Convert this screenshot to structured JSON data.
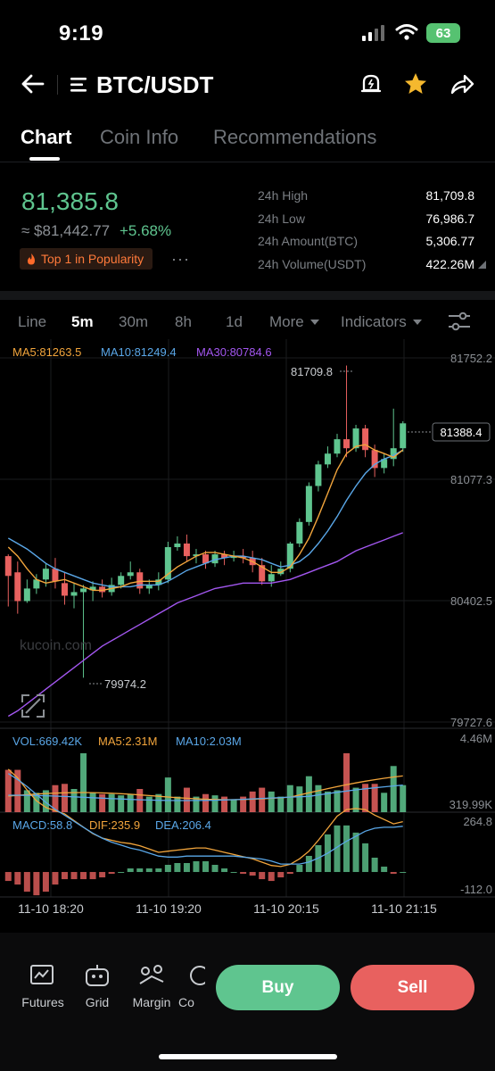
{
  "status": {
    "time": "9:19",
    "battery": "63"
  },
  "header": {
    "title": "BTC/USDT"
  },
  "tabs": [
    {
      "label": "Chart"
    },
    {
      "label": "Coin Info"
    },
    {
      "label": "Recommendations"
    }
  ],
  "ticker": {
    "last_price": "81,385.8",
    "fiat_price": "≈ $81,442.77",
    "change": "+5.68%",
    "badge": "Top 1 in Popularity",
    "more": "···",
    "stats": [
      {
        "label": "24h High",
        "value": "81,709.8"
      },
      {
        "label": "24h Low",
        "value": "76,986.7"
      },
      {
        "label": "24h Amount(BTC)",
        "value": "5,306.77"
      },
      {
        "label": "24h Volume(USDT)",
        "value": "422.26M"
      }
    ]
  },
  "timeframes": [
    {
      "label": "Line"
    },
    {
      "label": "5m"
    },
    {
      "label": "30m"
    },
    {
      "label": "8h"
    },
    {
      "label": "1d"
    }
  ],
  "toolbar": {
    "more_label": "More",
    "indicators_label": "Indicators"
  },
  "chart_data": {
    "type": "candlestick",
    "price_ticks": [
      "81752.2",
      "81077.3",
      "80402.5",
      "79727.6"
    ],
    "price_range": [
      79727.6,
      81752.2
    ],
    "ma_legend": {
      "ma5": "MA5:81263.5",
      "ma10": "MA10:81249.4",
      "ma30": "MA30:80784.6"
    },
    "last_price_label": "81388.4",
    "high_marker": "81709.8",
    "low_marker": "79974.2",
    "watermark": "kucoin.com",
    "x_ticks": [
      "11-10 18:20",
      "11-10 19:20",
      "11-10 20:15",
      "11-10 21:15"
    ],
    "candles": [
      [
        80650,
        80540,
        80660,
        80370
      ],
      [
        80560,
        80400,
        80620,
        80330
      ],
      [
        80400,
        80470,
        80520,
        80390
      ],
      [
        80470,
        80520,
        80550,
        80440
      ],
      [
        80520,
        80580,
        80610,
        80480
      ],
      [
        80580,
        80510,
        80640,
        80470
      ],
      [
        80500,
        80430,
        80560,
        80380
      ],
      [
        80430,
        80450,
        80500,
        80360
      ],
      [
        80450,
        80470,
        80490,
        79974
      ],
      [
        80460,
        80480,
        80510,
        80400
      ],
      [
        80480,
        80450,
        80520,
        80420
      ],
      [
        80450,
        80490,
        80530,
        80430
      ],
      [
        80490,
        80540,
        80560,
        80470
      ],
      [
        80540,
        80560,
        80620,
        80520
      ],
      [
        80560,
        80470,
        80580,
        80440
      ],
      [
        80470,
        80490,
        80520,
        80440
      ],
      [
        80490,
        80520,
        80560,
        80460
      ],
      [
        80520,
        80700,
        80730,
        80500
      ],
      [
        80700,
        80720,
        80760,
        80680
      ],
      [
        80720,
        80650,
        80770,
        80620
      ],
      [
        80650,
        80660,
        80690,
        80610
      ],
      [
        80660,
        80610,
        80680,
        80580
      ],
      [
        80610,
        80660,
        80680,
        80590
      ],
      [
        80660,
        80640,
        80680,
        80600
      ],
      [
        80640,
        80650,
        80680,
        80620
      ],
      [
        80650,
        80640,
        80690,
        80610
      ],
      [
        80640,
        80600,
        80680,
        80560
      ],
      [
        80600,
        80510,
        80640,
        80490
      ],
      [
        80510,
        80550,
        80600,
        80480
      ],
      [
        80550,
        80580,
        80620,
        80540
      ],
      [
        80580,
        80720,
        80730,
        80560
      ],
      [
        80720,
        80840,
        80860,
        80700
      ],
      [
        80840,
        81040,
        81060,
        80820
      ],
      [
        81040,
        81160,
        81180,
        81010
      ],
      [
        81160,
        81220,
        81260,
        81140
      ],
      [
        81220,
        81300,
        81330,
        81200
      ],
      [
        81300,
        81250,
        81709.8,
        81200
      ],
      [
        81250,
        81360,
        81380,
        81230
      ],
      [
        81360,
        81240,
        81380,
        81200
      ],
      [
        81240,
        81140,
        81270,
        81090
      ],
      [
        81140,
        81190,
        81220,
        81110
      ],
      [
        81190,
        81250,
        81470,
        81150
      ],
      [
        81250,
        81388.4,
        81400,
        81230
      ]
    ],
    "ma5": [
      80700,
      80650,
      80580,
      80520,
      80500,
      80510,
      80520,
      80500,
      80480,
      80460,
      80460,
      80470,
      80480,
      80500,
      80510,
      80510,
      80510,
      80550,
      80590,
      80620,
      80650,
      80670,
      80670,
      80660,
      80650,
      80640,
      80620,
      80590,
      80560,
      80560,
      80590,
      80660,
      80750,
      80870,
      81000,
      81130,
      81220,
      81260,
      81270,
      81240,
      81220,
      81200,
      81240
    ],
    "ma10": [
      80750,
      80720,
      80690,
      80650,
      80610,
      80580,
      80560,
      80540,
      80520,
      80500,
      80490,
      80480,
      80480,
      80480,
      80490,
      80490,
      80490,
      80510,
      80540,
      80570,
      80590,
      80610,
      80630,
      80640,
      80650,
      80650,
      80640,
      80630,
      80610,
      80590,
      80600,
      80620,
      80660,
      80720,
      80790,
      80870,
      80960,
      81040,
      81110,
      81160,
      81190,
      81210,
      81240
    ],
    "ma30": [
      79760,
      79790,
      79830,
      79870,
      79910,
      79950,
      79990,
      80030,
      80070,
      80110,
      80150,
      80180,
      80210,
      80240,
      80270,
      80300,
      80330,
      80360,
      80390,
      80410,
      80430,
      80450,
      80470,
      80480,
      80490,
      80500,
      80500,
      80500,
      80500,
      80510,
      80520,
      80540,
      80560,
      80580,
      80600,
      80620,
      80650,
      80680,
      80700,
      80720,
      80740,
      80760,
      80780
    ],
    "volume": {
      "legend": {
        "vol": "VOL:669.42K",
        "ma5": "MA5:2.31M",
        "ma10": "MA10:2.03M"
      },
      "ticks": [
        "4.46M",
        "319.99K"
      ],
      "max": 4460000
    },
    "macd": {
      "legend": {
        "macd": "MACD:58.8",
        "dif": "DIF:235.9",
        "dea": "DEA:206.4"
      },
      "ticks": [
        "264.8",
        "-112.0"
      ],
      "range": [
        -112.0,
        264.8
      ]
    }
  },
  "bottom_nav": [
    {
      "label": "Futures"
    },
    {
      "label": "Grid"
    },
    {
      "label": "Margin"
    },
    {
      "label": "Co"
    }
  ],
  "actions": {
    "buy": "Buy",
    "sell": "Sell"
  },
  "colors": {
    "up": "#5fc58f",
    "down": "#e8615f",
    "ma5": "#f2a53c",
    "ma10": "#5aa7e8",
    "ma30": "#a357f0"
  }
}
